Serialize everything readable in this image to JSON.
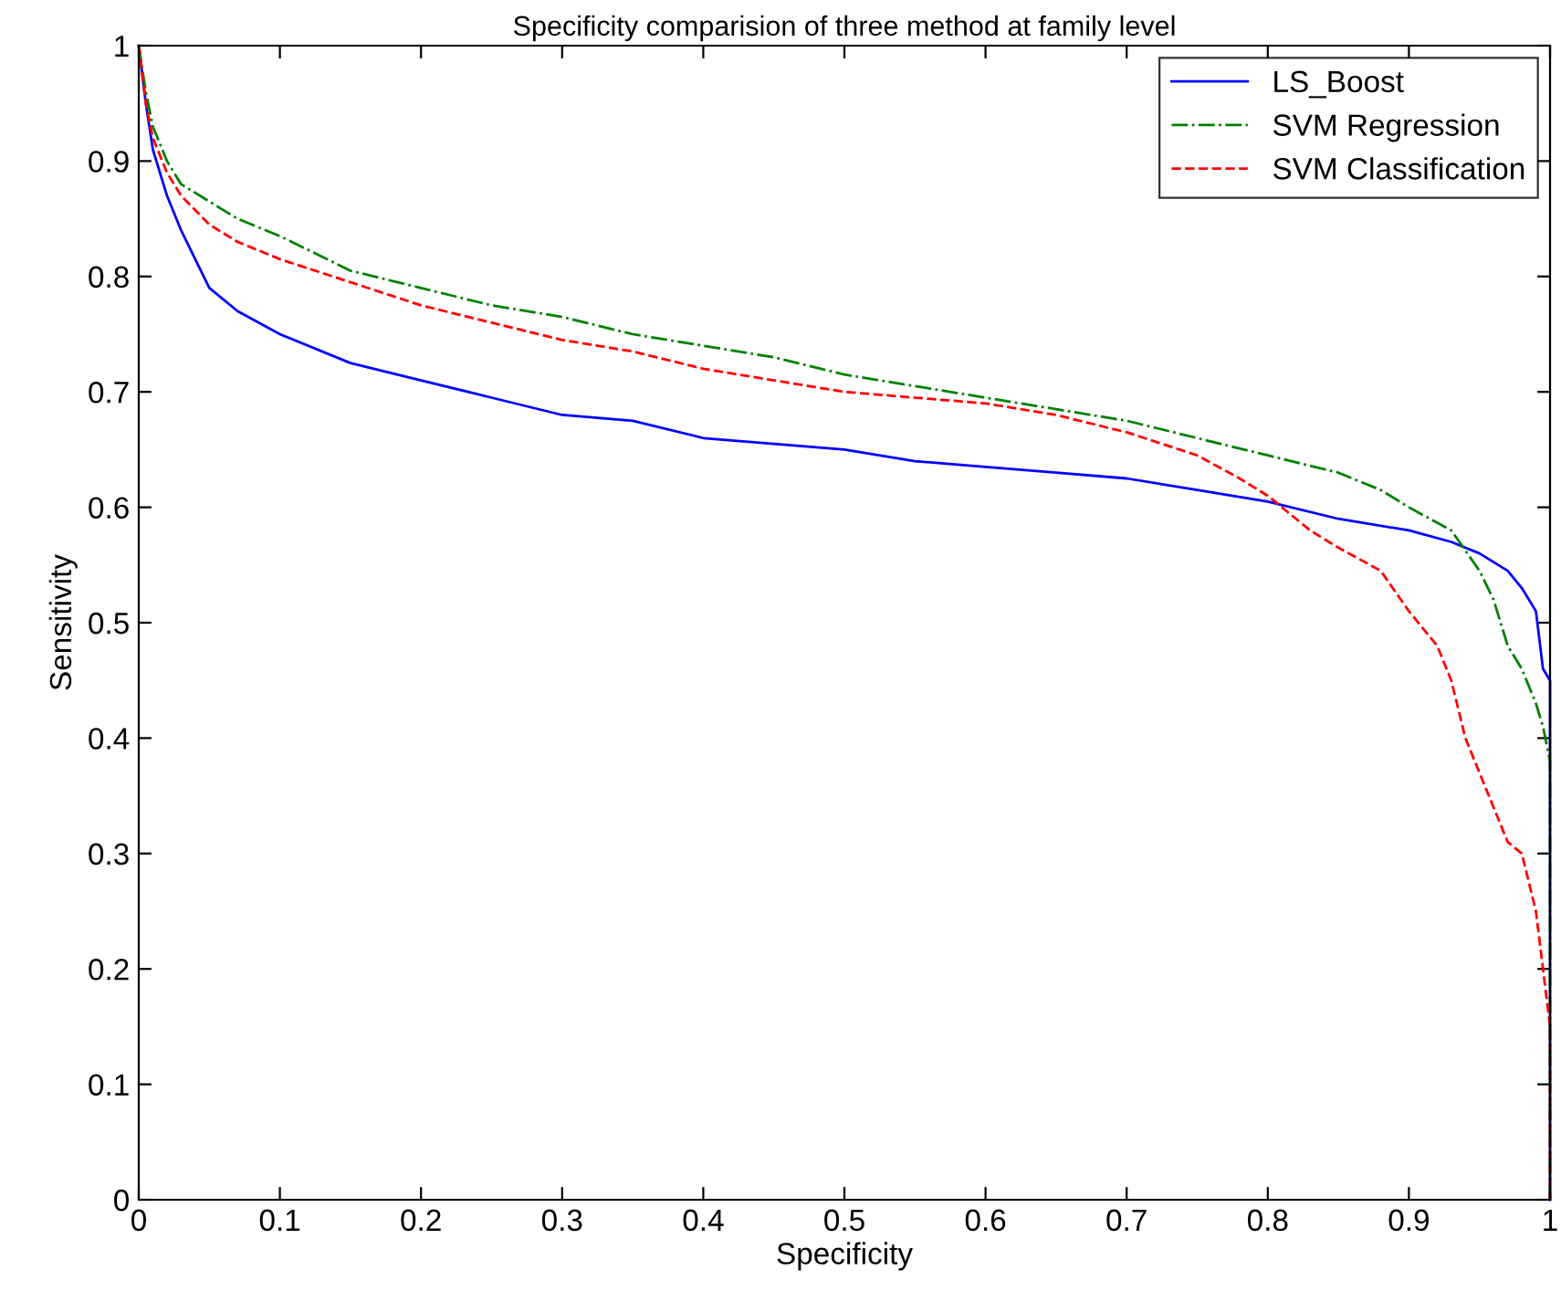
{
  "chart_data": {
    "type": "line",
    "title": "Specificity comparision of three method at family level",
    "xlabel": "Specificity",
    "ylabel": "Sensitivity",
    "xlim": [
      0,
      1
    ],
    "ylim": [
      0,
      1
    ],
    "xticks": [
      0,
      0.1,
      0.2,
      0.3,
      0.4,
      0.5,
      0.6,
      0.7,
      0.8,
      0.9,
      1
    ],
    "yticks": [
      0,
      0.1,
      0.2,
      0.3,
      0.4,
      0.5,
      0.6,
      0.7,
      0.8,
      0.9,
      1
    ],
    "grid": false,
    "legend": "top right",
    "marker": "none",
    "series": [
      {
        "name": "LS_Boost",
        "color": "#0000ff",
        "line_style": "solid",
        "x": [
          0,
          0.005,
          0.01,
          0.02,
          0.03,
          0.05,
          0.07,
          0.1,
          0.15,
          0.2,
          0.25,
          0.3,
          0.35,
          0.4,
          0.45,
          0.5,
          0.55,
          0.6,
          0.65,
          0.7,
          0.75,
          0.8,
          0.85,
          0.9,
          0.93,
          0.95,
          0.97,
          0.98,
          0.99,
          0.995,
          1,
          1
        ],
        "values": [
          1,
          0.95,
          0.91,
          0.87,
          0.84,
          0.79,
          0.77,
          0.75,
          0.725,
          0.71,
          0.695,
          0.68,
          0.675,
          0.66,
          0.655,
          0.65,
          0.64,
          0.635,
          0.63,
          0.625,
          0.615,
          0.605,
          0.59,
          0.58,
          0.57,
          0.56,
          0.545,
          0.53,
          0.51,
          0.46,
          0.45,
          0
        ]
      },
      {
        "name": "SVM Regression",
        "color": "#008000",
        "line_style": "dashdot",
        "x": [
          0,
          0.005,
          0.01,
          0.02,
          0.03,
          0.05,
          0.07,
          0.1,
          0.15,
          0.2,
          0.25,
          0.3,
          0.35,
          0.4,
          0.45,
          0.5,
          0.55,
          0.6,
          0.65,
          0.7,
          0.75,
          0.8,
          0.85,
          0.88,
          0.9,
          0.93,
          0.95,
          0.96,
          0.97,
          0.98,
          0.99,
          0.995,
          1,
          1
        ],
        "values": [
          1,
          0.96,
          0.93,
          0.9,
          0.88,
          0.865,
          0.85,
          0.835,
          0.805,
          0.79,
          0.775,
          0.765,
          0.75,
          0.74,
          0.73,
          0.715,
          0.705,
          0.695,
          0.685,
          0.675,
          0.66,
          0.645,
          0.63,
          0.615,
          0.6,
          0.58,
          0.545,
          0.52,
          0.48,
          0.46,
          0.43,
          0.41,
          0.38,
          0
        ]
      },
      {
        "name": "SVM Classification",
        "color": "#ff0000",
        "line_style": "dashed",
        "x": [
          0,
          0.005,
          0.01,
          0.02,
          0.03,
          0.05,
          0.07,
          0.1,
          0.15,
          0.2,
          0.25,
          0.3,
          0.35,
          0.4,
          0.45,
          0.5,
          0.55,
          0.6,
          0.65,
          0.7,
          0.75,
          0.78,
          0.8,
          0.83,
          0.85,
          0.88,
          0.9,
          0.92,
          0.93,
          0.94,
          0.95,
          0.96,
          0.97,
          0.98,
          0.99,
          0.995,
          1,
          1
        ],
        "values": [
          1,
          0.95,
          0.92,
          0.89,
          0.87,
          0.845,
          0.83,
          0.815,
          0.795,
          0.775,
          0.76,
          0.745,
          0.735,
          0.72,
          0.71,
          0.7,
          0.695,
          0.69,
          0.68,
          0.665,
          0.645,
          0.625,
          0.61,
          0.58,
          0.565,
          0.545,
          0.51,
          0.48,
          0.45,
          0.4,
          0.37,
          0.34,
          0.31,
          0.3,
          0.25,
          0.2,
          0.15,
          0
        ]
      }
    ]
  }
}
